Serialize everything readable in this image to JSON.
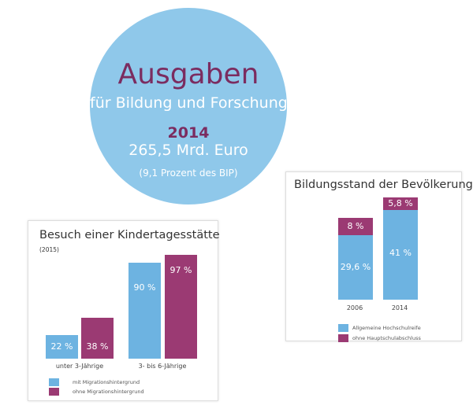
{
  "colors": {
    "blue": "#6db3e1",
    "purple": "#9b3a73",
    "circle": "#8fc8ea",
    "title": "#7b2c60"
  },
  "headline": {
    "title": "Ausgaben",
    "subtitle": "für Bildung und Forschung",
    "year": "2014",
    "amount": "265,5 Mrd. Euro",
    "share": "(9,1 Prozent des BIP)"
  },
  "chart_data": [
    {
      "type": "bar",
      "title": "Besuch einer Kindertagesstätte",
      "subtitle": "(2015)",
      "categories": [
        "unter 3-Jährige",
        "3- bis 6-Jährige"
      ],
      "series": [
        {
          "name": "mit Migrationshintergrund",
          "values": [
            22,
            90
          ],
          "labels": [
            "22 %",
            "90 %"
          ]
        },
        {
          "name": "ohne Migrationshintergrund",
          "values": [
            38,
            97
          ],
          "labels": [
            "38 %",
            "97 %"
          ]
        }
      ],
      "ylim": [
        0,
        100
      ],
      "legend": "bottom-left",
      "grid": false
    },
    {
      "type": "bar",
      "stacked": true,
      "title": "Bildungsstand der Bevölkerung",
      "categories": [
        "2006",
        "2014"
      ],
      "series": [
        {
          "name": "Allgemeine Hochschulreife",
          "values": [
            29.6,
            41
          ],
          "labels": [
            "29,6 %",
            "41 %"
          ]
        },
        {
          "name": "ohne Hauptschulabschluss",
          "values": [
            8,
            5.8
          ],
          "labels": [
            "8 %",
            "5,8 %"
          ]
        }
      ],
      "legend": "bottom",
      "grid": false
    }
  ]
}
